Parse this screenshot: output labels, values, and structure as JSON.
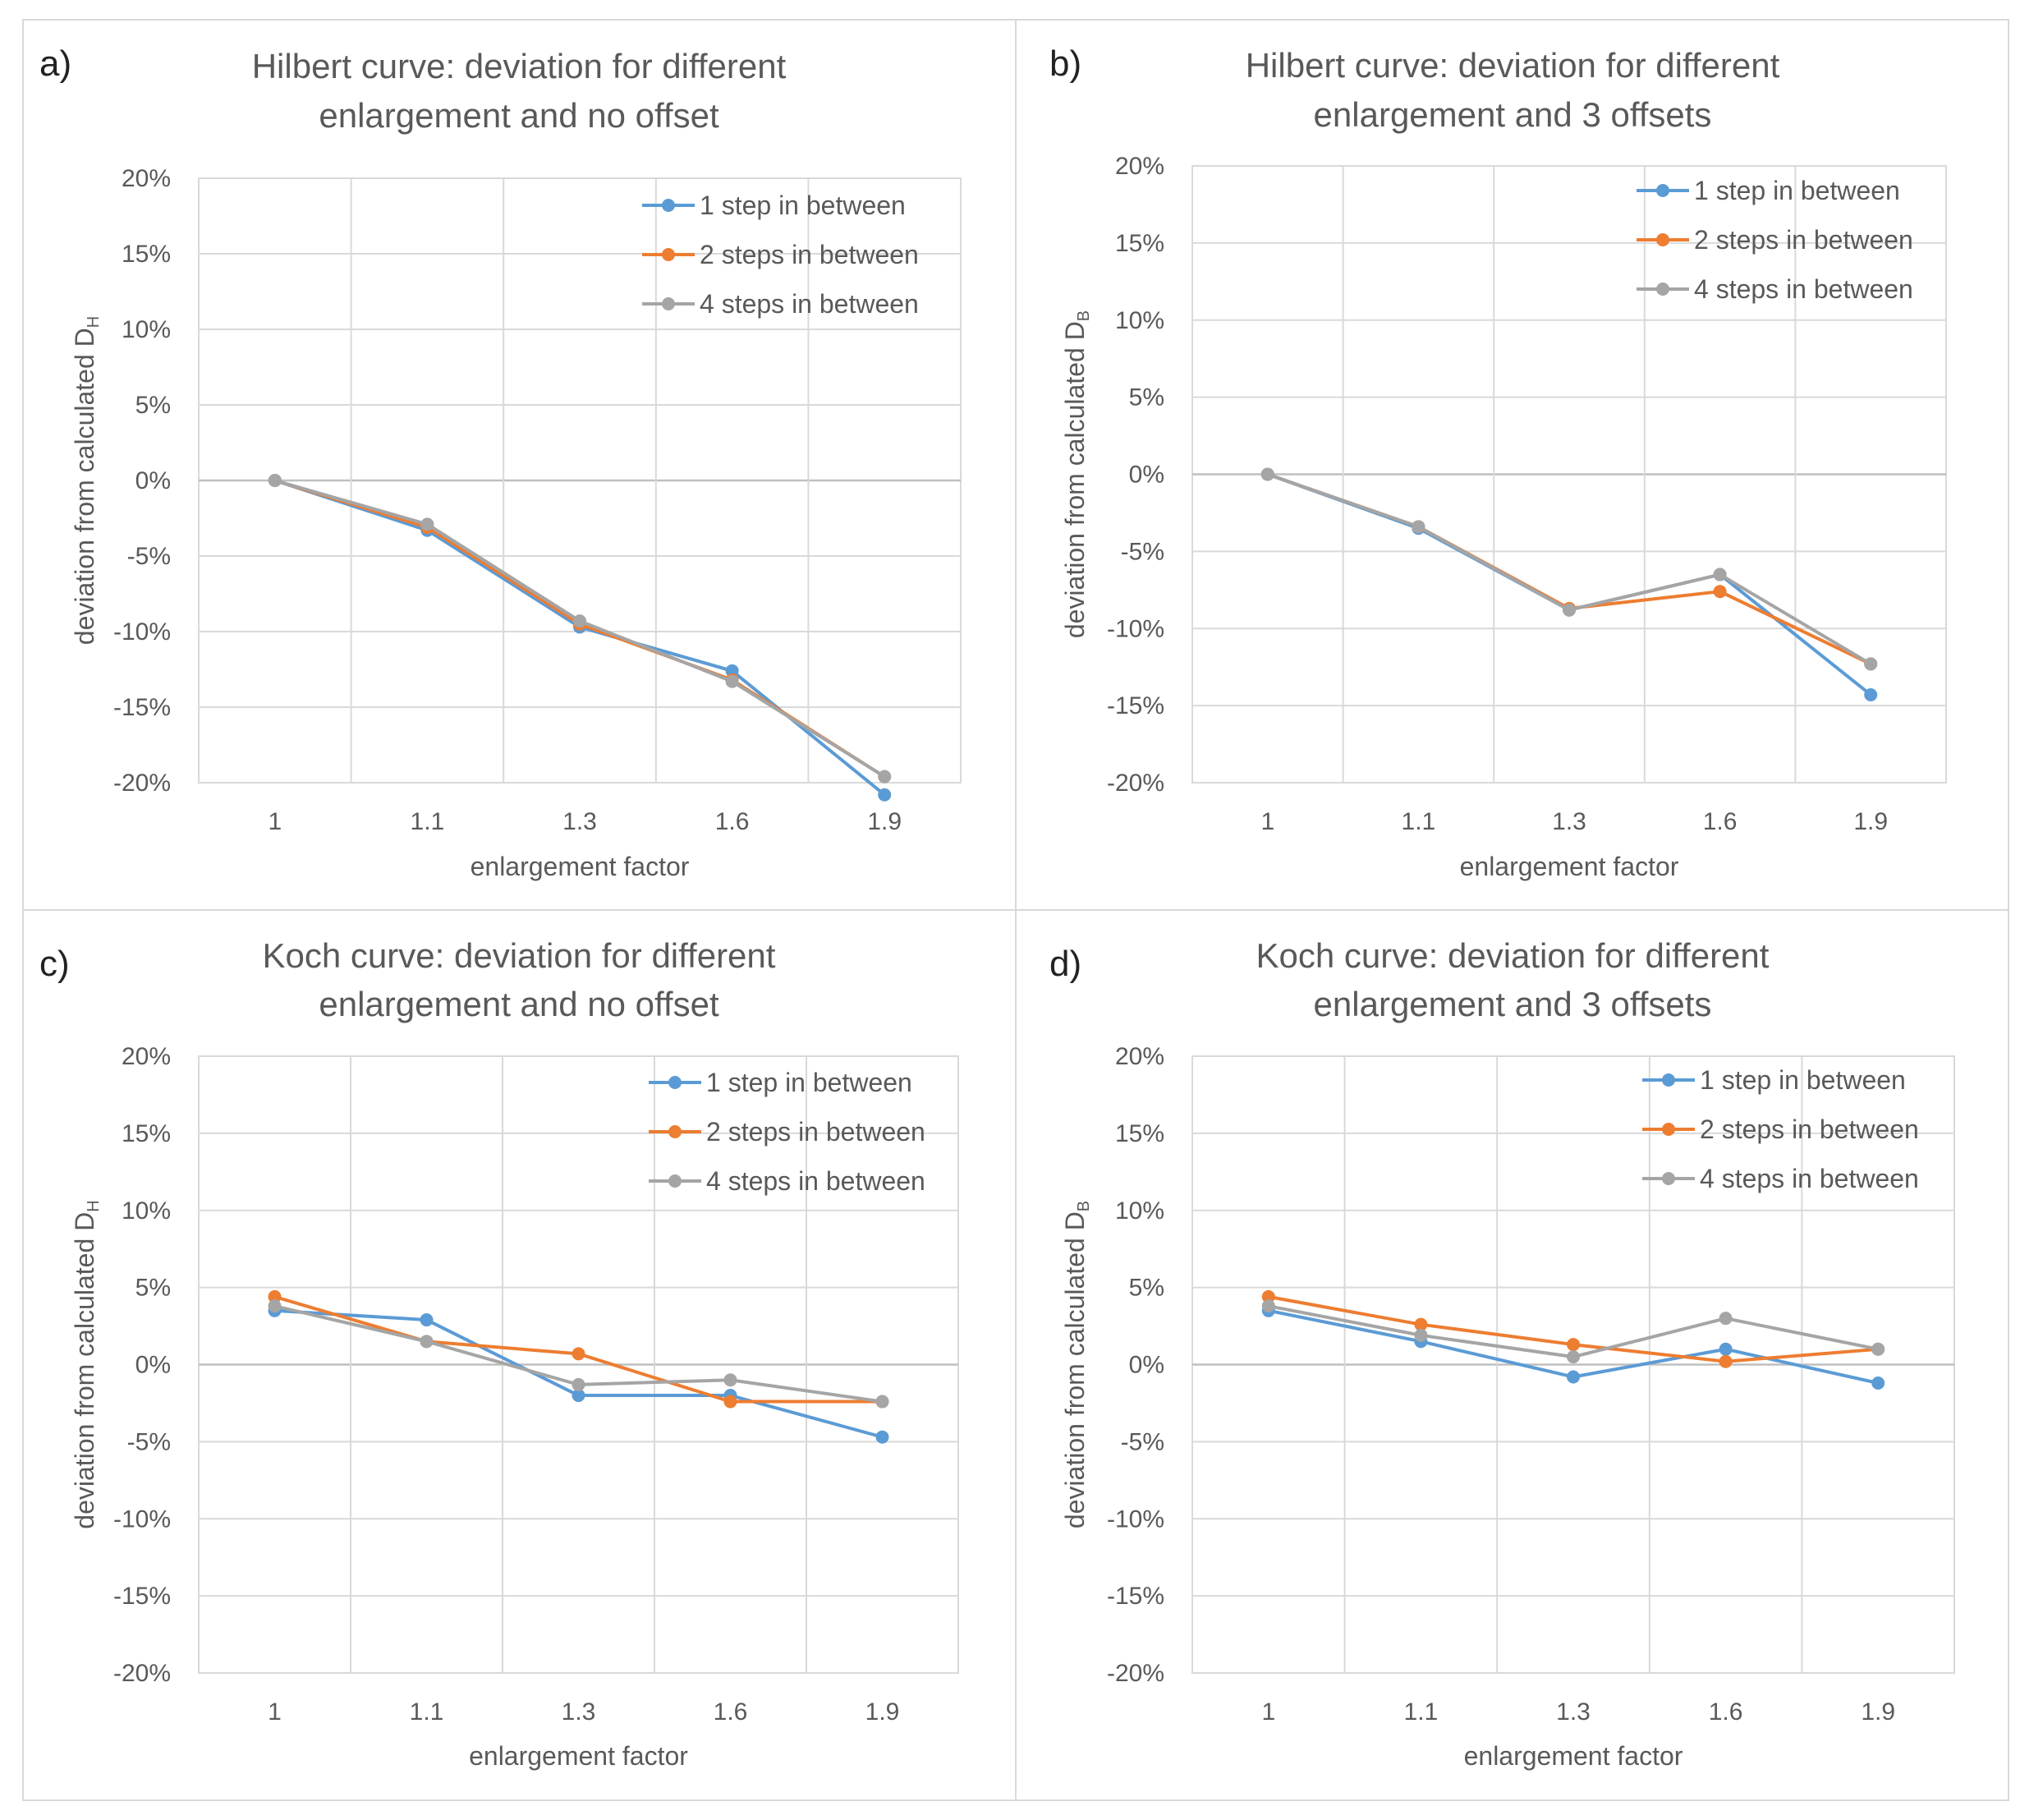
{
  "figure": {
    "panel_letters": [
      "a)",
      "b)",
      "c)",
      "d)"
    ]
  },
  "colors": {
    "series": [
      "#5b9bd5",
      "#ed7d31",
      "#a5a5a5"
    ],
    "grid": "#d9d9d9",
    "text": "#595959",
    "panel_border": "#d9d9d9"
  },
  "chart_data": [
    {
      "letter": "a)",
      "type": "line",
      "title": [
        "Hilbert curve: deviation for different",
        "enlargement and no offset"
      ],
      "xlabel": "enlargement factor",
      "ylabel_main": "deviation from calculated D",
      "ylabel_sub": "H",
      "categories": [
        "1",
        "1.1",
        "1.3",
        "1.6",
        "1.9"
      ],
      "ylim": [
        -0.2,
        0.2
      ],
      "yticks": [
        "20%",
        "15%",
        "10%",
        "5%",
        "0%",
        "-5%",
        "-10%",
        "-15%",
        "-20%"
      ],
      "ytick_values": [
        0.2,
        0.15,
        0.1,
        0.05,
        0,
        -0.05,
        -0.1,
        -0.15,
        -0.2
      ],
      "legend_position": "top-right",
      "series": [
        {
          "name": "1 step in between",
          "values": [
            0.0,
            -0.033,
            -0.097,
            -0.126,
            -0.208
          ]
        },
        {
          "name": "2 steps in between",
          "values": [
            0.0,
            -0.031,
            -0.095,
            -0.132,
            -0.196
          ]
        },
        {
          "name": "4 steps in between",
          "values": [
            0.0,
            -0.029,
            -0.093,
            -0.133,
            -0.196
          ]
        }
      ]
    },
    {
      "letter": "b)",
      "type": "line",
      "title": [
        "Hilbert curve: deviation for different",
        "enlargement and 3 offsets"
      ],
      "xlabel": "enlargement factor",
      "ylabel_main": "deviation from calculated D",
      "ylabel_sub": "B",
      "categories": [
        "1",
        "1.1",
        "1.3",
        "1.6",
        "1.9"
      ],
      "ylim": [
        -0.2,
        0.2
      ],
      "yticks": [
        "20%",
        "15%",
        "10%",
        "5%",
        "0%",
        "-5%",
        "-10%",
        "-15%",
        "-20%"
      ],
      "ytick_values": [
        0.2,
        0.15,
        0.1,
        0.05,
        0,
        -0.05,
        -0.1,
        -0.15,
        -0.2
      ],
      "legend_position": "top-right",
      "series": [
        {
          "name": "1 step in between",
          "values": [
            0.0,
            -0.035,
            -0.088,
            -0.065,
            -0.143
          ]
        },
        {
          "name": "2 steps in between",
          "values": [
            0.0,
            -0.034,
            -0.087,
            -0.076,
            -0.123
          ]
        },
        {
          "name": "4 steps in between",
          "values": [
            0.0,
            -0.034,
            -0.088,
            -0.065,
            -0.123
          ]
        }
      ]
    },
    {
      "letter": "c)",
      "type": "line",
      "title": [
        "Koch curve: deviation for different",
        "enlargement and no offset"
      ],
      "xlabel": "enlargement factor",
      "ylabel_main": "deviation from calculated D",
      "ylabel_sub": "H",
      "categories": [
        "1",
        "1.1",
        "1.3",
        "1.6",
        "1.9"
      ],
      "ylim": [
        -0.2,
        0.2
      ],
      "yticks": [
        "20%",
        "15%",
        "10%",
        "5%",
        "0%",
        "-5%",
        "-10%",
        "-15%",
        "-20%"
      ],
      "ytick_values": [
        0.2,
        0.15,
        0.1,
        0.05,
        0,
        -0.05,
        -0.1,
        -0.15,
        -0.2
      ],
      "legend_position": "top-right",
      "series": [
        {
          "name": "1 step in between",
          "values": [
            0.035,
            0.029,
            -0.02,
            -0.02,
            -0.047
          ]
        },
        {
          "name": "2 steps in between",
          "values": [
            0.044,
            0.015,
            0.007,
            -0.024,
            -0.024
          ]
        },
        {
          "name": "4 steps in between",
          "values": [
            0.038,
            0.015,
            -0.013,
            -0.01,
            -0.024
          ]
        }
      ]
    },
    {
      "letter": "d)",
      "type": "line",
      "title": [
        "Koch curve: deviation for different",
        "enlargement and 3 offsets"
      ],
      "xlabel": "enlargement factor",
      "ylabel_main": "deviation from calculated D",
      "ylabel_sub": "B",
      "categories": [
        "1",
        "1.1",
        "1.3",
        "1.6",
        "1.9"
      ],
      "ylim": [
        -0.2,
        0.2
      ],
      "yticks": [
        "20%",
        "15%",
        "10%",
        "5%",
        "0%",
        "-5%",
        "-10%",
        "-15%",
        "-20%"
      ],
      "ytick_values": [
        0.2,
        0.15,
        0.1,
        0.05,
        0,
        -0.05,
        -0.1,
        -0.15,
        -0.2
      ],
      "legend_position": "top-right",
      "series": [
        {
          "name": "1 step in between",
          "values": [
            0.035,
            0.015,
            -0.008,
            0.01,
            -0.012
          ]
        },
        {
          "name": "2 steps in between",
          "values": [
            0.044,
            0.026,
            0.013,
            0.002,
            0.01
          ]
        },
        {
          "name": "4 steps in between",
          "values": [
            0.038,
            0.019,
            0.005,
            0.03,
            0.01
          ]
        }
      ]
    }
  ]
}
